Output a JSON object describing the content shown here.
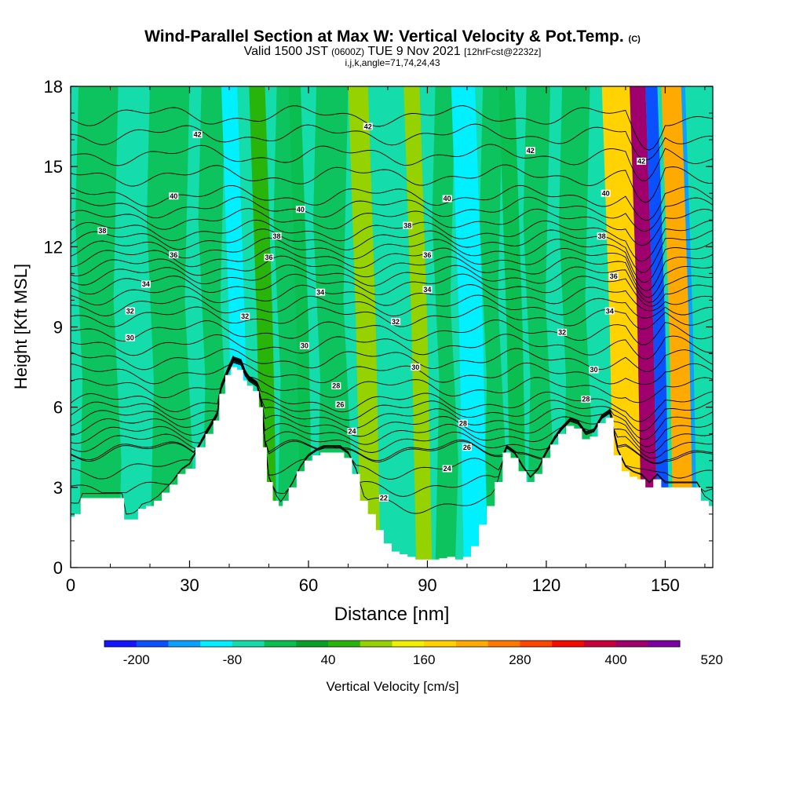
{
  "title": {
    "main": "Wind-Parallel Section at Max W: Vertical Velocity & Pot.Temp.",
    "copyright": "(C)",
    "valid_prefix": "Valid 1500 JST",
    "valid_utc": "(0600Z)",
    "valid_date": "TUE 9 Nov 2021",
    "forecast": "[12hrFcst@2232z]",
    "indices": "i,j,k,angle=71,74,24,43"
  },
  "chart_data": {
    "type": "heatmap",
    "xlabel": "Distance [nm]",
    "ylabel": "Height [Kft MSL]",
    "xlim": [
      0,
      162
    ],
    "ylim": [
      0,
      18
    ],
    "x_ticks": [
      0,
      30,
      60,
      90,
      120,
      150
    ],
    "y_ticks": [
      0,
      3,
      6,
      9,
      12,
      15,
      18
    ],
    "terrain_profile": {
      "x": [
        0,
        2,
        3,
        6,
        13,
        14,
        16,
        18,
        20,
        22,
        24,
        26,
        28,
        30,
        33,
        35,
        37,
        38,
        40,
        41,
        43,
        44,
        45,
        47,
        48,
        49,
        50,
        52,
        53,
        54,
        56,
        58,
        60,
        62,
        64,
        66,
        68,
        70,
        72,
        74,
        76,
        78,
        80,
        82,
        84,
        86,
        88,
        90,
        92,
        94,
        96,
        98,
        100,
        102,
        104,
        106,
        108,
        110,
        112,
        114,
        116,
        118,
        120,
        122,
        124,
        126,
        128,
        130,
        132,
        134,
        136,
        138,
        140,
        142,
        144,
        146,
        148,
        150,
        152,
        154,
        156,
        158,
        160,
        162
      ],
      "height": [
        1.9,
        2.0,
        2.6,
        2.6,
        2.6,
        1.8,
        1.8,
        2.2,
        2.3,
        2.5,
        2.8,
        3.1,
        3.5,
        3.7,
        4.5,
        5.0,
        5.5,
        6.5,
        7.2,
        7.5,
        7.4,
        7.0,
        6.8,
        6.6,
        6.0,
        4.5,
        3.2,
        2.5,
        2.3,
        2.5,
        3.0,
        3.6,
        4.0,
        4.2,
        4.3,
        4.3,
        4.3,
        4.1,
        3.5,
        2.5,
        2.0,
        1.4,
        0.9,
        0.6,
        0.5,
        0.4,
        0.3,
        0.3,
        0.3,
        0.35,
        0.4,
        0.3,
        0.4,
        0.8,
        1.6,
        2.3,
        3.2,
        4.3,
        4.1,
        3.6,
        3.2,
        3.5,
        4.1,
        4.6,
        5.0,
        5.3,
        5.2,
        4.8,
        4.9,
        5.4,
        5.6,
        4.2,
        3.6,
        3.4,
        3.3,
        3.0,
        3.3,
        3.0,
        3.0,
        3.0,
        3.0,
        3.0,
        2.5,
        2.3
      ]
    },
    "vertical_velocity_bands": [
      {
        "x": [
          40,
          44
        ],
        "value": -120
      },
      {
        "x": [
          44,
          48
        ],
        "value": -60
      },
      {
        "x": [
          47,
          51
        ],
        "value": 70
      },
      {
        "x": [
          57,
          60
        ],
        "value": -40
      },
      {
        "x": [
          72,
          77
        ],
        "value": 110
      },
      {
        "x": [
          79,
          85
        ],
        "value": -70
      },
      {
        "x": [
          86,
          90
        ],
        "value": 90
      },
      {
        "x": [
          98,
          104
        ],
        "value": -90
      },
      {
        "x": [
          110,
          114
        ],
        "value": -40
      },
      {
        "x": [
          136,
          143
        ],
        "value": 170
      },
      {
        "x": [
          143,
          147
        ],
        "value": 420
      },
      {
        "x": [
          147,
          150
        ],
        "value": -180
      },
      {
        "x": [
          151,
          156
        ],
        "value": 230
      },
      {
        "x": [
          156,
          159
        ],
        "value": -130
      },
      {
        "x": [
          157,
          161
        ],
        "value": -60
      }
    ],
    "potential_temperature_contours": {
      "base_height_at_levels": [
        {
          "theta": 24,
          "y": 4.4
        },
        {
          "theta": 26,
          "y": 5.3
        },
        {
          "theta": 28,
          "y": 6.2
        },
        {
          "theta": 30,
          "y": 7.8
        },
        {
          "theta": 32,
          "y": 9.4
        },
        {
          "theta": 34,
          "y": 10.6
        },
        {
          "theta": 36,
          "y": 11.6
        },
        {
          "theta": 38,
          "y": 12.6
        },
        {
          "theta": 40,
          "y": 13.9
        },
        {
          "theta": 42,
          "y": 16.2
        }
      ],
      "labels": [
        {
          "text": "42",
          "x": 32,
          "y": 16.2
        },
        {
          "text": "42",
          "x": 75,
          "y": 16.5
        },
        {
          "text": "42",
          "x": 116,
          "y": 15.6
        },
        {
          "text": "42",
          "x": 144,
          "y": 15.2
        },
        {
          "text": "40",
          "x": 26,
          "y": 13.9
        },
        {
          "text": "40",
          "x": 58,
          "y": 13.4
        },
        {
          "text": "40",
          "x": 95,
          "y": 13.8
        },
        {
          "text": "40",
          "x": 135,
          "y": 14.0
        },
        {
          "text": "38",
          "x": 8,
          "y": 12.6
        },
        {
          "text": "38",
          "x": 52,
          "y": 12.4
        },
        {
          "text": "38",
          "x": 85,
          "y": 12.8
        },
        {
          "text": "38",
          "x": 134,
          "y": 12.4
        },
        {
          "text": "36",
          "x": 26,
          "y": 11.7
        },
        {
          "text": "36",
          "x": 50,
          "y": 11.6
        },
        {
          "text": "36",
          "x": 90,
          "y": 11.7
        },
        {
          "text": "36",
          "x": 137,
          "y": 10.9
        },
        {
          "text": "34",
          "x": 19,
          "y": 10.6
        },
        {
          "text": "34",
          "x": 63,
          "y": 10.3
        },
        {
          "text": "34",
          "x": 90,
          "y": 10.4
        },
        {
          "text": "34",
          "x": 136,
          "y": 9.6
        },
        {
          "text": "32",
          "x": 15,
          "y": 9.6
        },
        {
          "text": "32",
          "x": 44,
          "y": 9.4
        },
        {
          "text": "32",
          "x": 82,
          "y": 9.2
        },
        {
          "text": "32",
          "x": 124,
          "y": 8.8
        },
        {
          "text": "30",
          "x": 15,
          "y": 8.6
        },
        {
          "text": "30",
          "x": 59,
          "y": 8.3
        },
        {
          "text": "30",
          "x": 87,
          "y": 7.5
        },
        {
          "text": "30",
          "x": 132,
          "y": 7.4
        },
        {
          "text": "28",
          "x": 67,
          "y": 6.8
        },
        {
          "text": "28",
          "x": 99,
          "y": 5.4
        },
        {
          "text": "28",
          "x": 130,
          "y": 6.3
        },
        {
          "text": "26",
          "x": 68,
          "y": 6.1
        },
        {
          "text": "26",
          "x": 100,
          "y": 4.5
        },
        {
          "text": "24",
          "x": 71,
          "y": 5.1
        },
        {
          "text": "24",
          "x": 95,
          "y": 3.7
        },
        {
          "text": "22",
          "x": 79,
          "y": 2.6
        }
      ]
    },
    "colorbar": {
      "label": "Vertical Velocity [cm/s]",
      "tick_labels": [
        "-200",
        "-80",
        "40",
        "160",
        "280",
        "400",
        "520"
      ],
      "colors": [
        "#1414ff",
        "#0a50ff",
        "#0aa0ff",
        "#00f0ff",
        "#14dcaa",
        "#0abe50",
        "#0aa028",
        "#28b40a",
        "#96d200",
        "#f0f000",
        "#ffd200",
        "#ffaa00",
        "#ff7800",
        "#ff4600",
        "#f50a00",
        "#c8003c",
        "#a0006e",
        "#7a00a0"
      ]
    }
  }
}
